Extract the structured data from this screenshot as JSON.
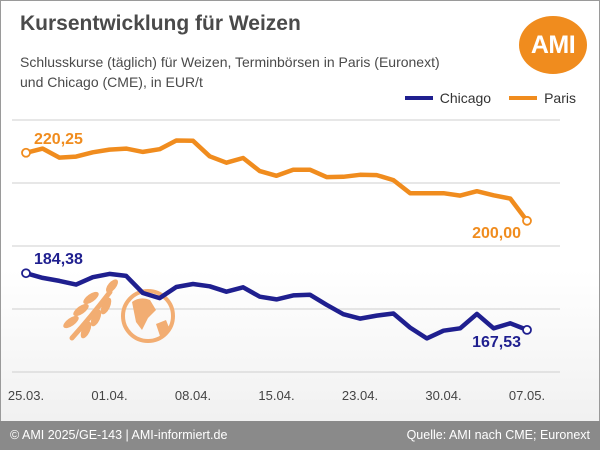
{
  "header": {
    "title": "Kursentwicklung für Weizen",
    "subtitle_line1": "Schlusskurse (täglich) für Weizen, Terminbörsen in Paris (Euronext)",
    "subtitle_line2": "und Chicago (CME), in EUR/t",
    "logo": "AMI"
  },
  "footer": {
    "left": "© AMI 2025/GE-143 | AMI-informiert.de",
    "right": "Quelle: AMI nach CME; Euronext"
  },
  "colors": {
    "chicago": "#1f1f8f",
    "paris": "#f08c1e",
    "grid": "#cfcfcf"
  },
  "icons": [
    "wheat-icon",
    "globe-icon"
  ],
  "chart_data": {
    "type": "line",
    "x_tick_labels": [
      "25.03.",
      "01.04.",
      "08.04.",
      "15.04.",
      "23.04.",
      "30.04.",
      "07.05."
    ],
    "x": [
      "25.03.",
      "26.03.",
      "27.03.",
      "28.03.",
      "31.03.",
      "01.04.",
      "02.04.",
      "03.04.",
      "04.04.",
      "07.04.",
      "08.04.",
      "09.04.",
      "10.04.",
      "11.04.",
      "14.04.",
      "15.04.",
      "16.04.",
      "17.04.",
      "18.04.",
      "22.04.",
      "23.04.",
      "24.04.",
      "25.04.",
      "28.04.",
      "29.04.",
      "30.04.",
      "01.05.",
      "02.05.",
      "05.05.",
      "06.05.",
      "07.05."
    ],
    "ylim": [
      155,
      230
    ],
    "legend": {
      "position": "top-right"
    },
    "grid": {
      "horizontal": true,
      "vertical": false
    },
    "series": [
      {
        "name": "Chicago",
        "values": [
          184.4,
          183.0,
          182.1,
          181.0,
          183.2,
          184.2,
          183.6,
          178.5,
          177.0,
          180.3,
          181.2,
          180.5,
          178.9,
          180.2,
          177.4,
          176.6,
          177.8,
          178.0,
          175.0,
          172.2,
          170.9,
          171.8,
          172.4,
          168.2,
          165.0,
          167.3,
          168.0,
          172.3,
          168.0,
          169.5,
          167.53
        ]
      },
      {
        "name": "Paris",
        "values": [
          220.25,
          221.5,
          218.8,
          219.1,
          220.4,
          221.2,
          221.5,
          220.5,
          221.3,
          223.9,
          223.8,
          219.2,
          217.3,
          218.7,
          214.8,
          213.4,
          215.2,
          215.2,
          213.0,
          213.1,
          213.7,
          213.6,
          212.1,
          208.2,
          208.2,
          208.2,
          207.5,
          208.8,
          207.6,
          206.6,
          200.0
        ]
      }
    ],
    "annotations": [
      {
        "text": "220,25",
        "series": "Paris",
        "x": "25.03."
      },
      {
        "text": "184,38",
        "series": "Chicago",
        "x": "25.03."
      },
      {
        "text": "200,00",
        "series": "Paris",
        "x": "07.05."
      },
      {
        "text": "167,53",
        "series": "Chicago",
        "x": "07.05."
      }
    ]
  }
}
